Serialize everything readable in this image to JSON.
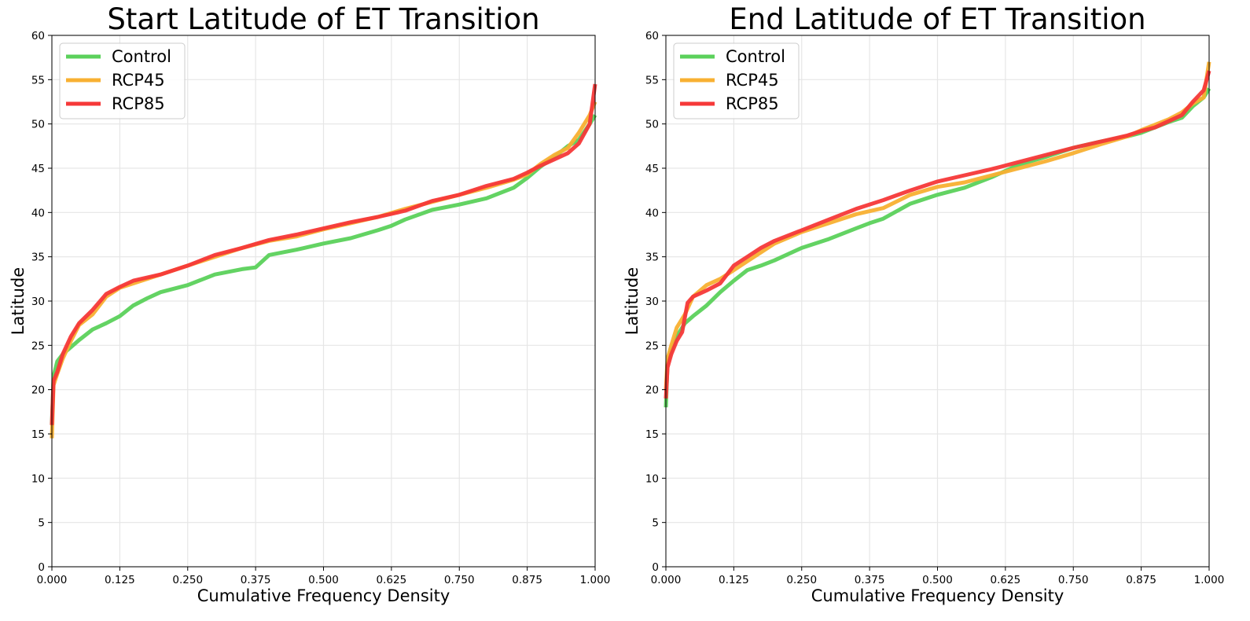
{
  "chart_data": [
    {
      "type": "line",
      "title": "Start Latitude of ET Transition",
      "xlabel": "Cumulative Frequency Density",
      "ylabel": "Latitude",
      "xlim": [
        0,
        1
      ],
      "ylim": [
        0,
        60
      ],
      "xticks": [
        "0.000",
        "0.125",
        "0.250",
        "0.375",
        "0.500",
        "0.625",
        "0.750",
        "0.875",
        "1.000"
      ],
      "yticks": [
        "0",
        "5",
        "10",
        "15",
        "20",
        "25",
        "30",
        "35",
        "40",
        "45",
        "50",
        "55",
        "60"
      ],
      "grid": true,
      "legend": "top-left",
      "series": [
        {
          "name": "Control",
          "color": "#5bd15b",
          "x": [
            0,
            0.003,
            0.01,
            0.02,
            0.035,
            0.05,
            0.075,
            0.1,
            0.125,
            0.15,
            0.175,
            0.2,
            0.25,
            0.3,
            0.35,
            0.375,
            0.4,
            0.45,
            0.5,
            0.55,
            0.6,
            0.625,
            0.65,
            0.7,
            0.75,
            0.8,
            0.85,
            0.875,
            0.9,
            0.93,
            0.95,
            0.97,
            0.99,
            1.0
          ],
          "y": [
            16,
            21.5,
            23.2,
            24,
            24.8,
            25.6,
            26.8,
            27.5,
            28.3,
            29.5,
            30.3,
            31,
            31.8,
            33,
            33.6,
            33.8,
            35.2,
            35.8,
            36.5,
            37.1,
            38,
            38.5,
            39.2,
            40.3,
            40.9,
            41.6,
            42.8,
            43.9,
            45.2,
            46.5,
            47.5,
            48.2,
            50,
            51
          ]
        },
        {
          "name": "RCP45",
          "color": "#f8b032",
          "x": [
            0,
            0.003,
            0.01,
            0.02,
            0.035,
            0.05,
            0.075,
            0.1,
            0.125,
            0.15,
            0.2,
            0.25,
            0.3,
            0.35,
            0.4,
            0.45,
            0.5,
            0.55,
            0.6,
            0.65,
            0.7,
            0.75,
            0.8,
            0.85,
            0.875,
            0.9,
            0.925,
            0.95,
            0.97,
            0.99,
            1.0
          ],
          "y": [
            14.5,
            20.5,
            21.8,
            23.5,
            25.5,
            27.3,
            28.5,
            30.5,
            31.5,
            32,
            33,
            34,
            35,
            36,
            36.8,
            37.3,
            38.1,
            38.8,
            39.5,
            40.4,
            41.2,
            42,
            42.8,
            43.7,
            44.3,
            45.5,
            46.5,
            47.3,
            49,
            51,
            52.5
          ]
        },
        {
          "name": "RCP85",
          "color": "#f63838",
          "x": [
            0,
            0.003,
            0.01,
            0.02,
            0.035,
            0.05,
            0.075,
            0.1,
            0.125,
            0.15,
            0.2,
            0.25,
            0.3,
            0.35,
            0.4,
            0.45,
            0.5,
            0.55,
            0.6,
            0.65,
            0.7,
            0.75,
            0.8,
            0.85,
            0.875,
            0.9,
            0.925,
            0.95,
            0.97,
            0.99,
            1.0
          ],
          "y": [
            16,
            21,
            22,
            24,
            26,
            27.5,
            29,
            30.8,
            31.6,
            32.3,
            33,
            34,
            35.2,
            36,
            36.9,
            37.5,
            38.2,
            38.9,
            39.5,
            40.2,
            41.3,
            42,
            43,
            43.8,
            44.5,
            45.3,
            46,
            46.7,
            47.8,
            50,
            54.5
          ]
        }
      ]
    },
    {
      "type": "line",
      "title": "End Latitude of ET Transition",
      "xlabel": "Cumulative Frequency Density",
      "ylabel": "Latitude",
      "xlim": [
        0,
        1
      ],
      "ylim": [
        0,
        60
      ],
      "xticks": [
        "0.000",
        "0.125",
        "0.250",
        "0.375",
        "0.500",
        "0.625",
        "0.750",
        "0.875",
        "1.000"
      ],
      "yticks": [
        "0",
        "5",
        "10",
        "15",
        "20",
        "25",
        "30",
        "35",
        "40",
        "45",
        "50",
        "55",
        "60"
      ],
      "grid": true,
      "legend": "top-left",
      "series": [
        {
          "name": "Control",
          "color": "#5bd15b",
          "x": [
            0,
            0.003,
            0.01,
            0.02,
            0.035,
            0.05,
            0.075,
            0.1,
            0.125,
            0.15,
            0.175,
            0.2,
            0.25,
            0.3,
            0.35,
            0.375,
            0.4,
            0.45,
            0.5,
            0.55,
            0.6,
            0.625,
            0.65,
            0.7,
            0.75,
            0.8,
            0.85,
            0.875,
            0.9,
            0.925,
            0.95,
            0.97,
            0.99,
            1.0
          ],
          "y": [
            18,
            23,
            24.5,
            26,
            27.5,
            28.3,
            29.5,
            31,
            32.3,
            33.5,
            34,
            34.6,
            36,
            37,
            38.2,
            38.8,
            39.3,
            41,
            42,
            42.8,
            44,
            44.7,
            45.4,
            46.3,
            47.3,
            48,
            48.6,
            49,
            49.6,
            50.2,
            50.7,
            52,
            53,
            54
          ]
        },
        {
          "name": "RCP45",
          "color": "#f8b032",
          "x": [
            0,
            0.003,
            0.01,
            0.02,
            0.035,
            0.05,
            0.075,
            0.1,
            0.125,
            0.15,
            0.175,
            0.2,
            0.25,
            0.3,
            0.35,
            0.4,
            0.45,
            0.5,
            0.55,
            0.6,
            0.65,
            0.7,
            0.75,
            0.8,
            0.85,
            0.875,
            0.9,
            0.925,
            0.95,
            0.97,
            0.99,
            1.0
          ],
          "y": [
            20,
            23.5,
            25,
            27,
            28.5,
            30.5,
            31.8,
            32.5,
            33.5,
            34.5,
            35.5,
            36.5,
            37.8,
            38.8,
            39.8,
            40.5,
            42,
            42.9,
            43.4,
            44.2,
            45,
            45.8,
            46.7,
            47.7,
            48.6,
            49.3,
            49.9,
            50.5,
            51.3,
            52.3,
            53,
            57
          ]
        },
        {
          "name": "RCP85",
          "color": "#f63838",
          "x": [
            0,
            0.003,
            0.01,
            0.02,
            0.03,
            0.04,
            0.05,
            0.075,
            0.1,
            0.125,
            0.15,
            0.175,
            0.2,
            0.25,
            0.3,
            0.35,
            0.4,
            0.45,
            0.5,
            0.55,
            0.6,
            0.65,
            0.7,
            0.75,
            0.8,
            0.85,
            0.875,
            0.9,
            0.925,
            0.95,
            0.97,
            0.99,
            1.0
          ],
          "y": [
            19,
            22.5,
            24,
            25.5,
            26.5,
            29.8,
            30.5,
            31.2,
            32,
            34,
            35,
            36,
            36.8,
            38,
            39.2,
            40.4,
            41.4,
            42.5,
            43.5,
            44.2,
            44.9,
            45.7,
            46.5,
            47.3,
            48,
            48.7,
            49.2,
            49.6,
            50.3,
            51,
            52.5,
            53.8,
            56
          ]
        }
      ]
    }
  ]
}
